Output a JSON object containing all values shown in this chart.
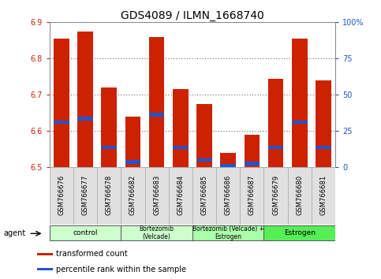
{
  "title": "GDS4089 / ILMN_1668740",
  "samples": [
    "GSM766676",
    "GSM766677",
    "GSM766678",
    "GSM766682",
    "GSM766683",
    "GSM766684",
    "GSM766685",
    "GSM766686",
    "GSM766687",
    "GSM766679",
    "GSM766680",
    "GSM766681"
  ],
  "bar_tops": [
    6.855,
    6.875,
    6.72,
    6.64,
    6.86,
    6.715,
    6.675,
    6.54,
    6.59,
    6.745,
    6.855,
    6.74
  ],
  "blue_positions": [
    6.625,
    6.635,
    6.555,
    6.515,
    6.645,
    6.555,
    6.52,
    6.505,
    6.51,
    6.555,
    6.625,
    6.555
  ],
  "bar_bottom": 6.5,
  "ymin": 6.5,
  "ymax": 6.9,
  "y_ticks": [
    6.5,
    6.6,
    6.7,
    6.8,
    6.9
  ],
  "y2_ticks": [
    0,
    25,
    50,
    75,
    100
  ],
  "bar_color": "#cc2200",
  "blue_color": "#2255cc",
  "bg_color": "#ffffff",
  "grid_color": "#000000",
  "label_color_left": "#cc2200",
  "label_color_right": "#2255cc",
  "agent_groups": [
    {
      "label": "control",
      "start": 0,
      "end": 3,
      "color": "#ccffcc"
    },
    {
      "label": "Bortezomib\n(Velcade)",
      "start": 3,
      "end": 6,
      "color": "#ccffcc"
    },
    {
      "label": "Bortezomib (Velcade) +\nEstrogen",
      "start": 6,
      "end": 9,
      "color": "#aaffaa"
    },
    {
      "label": "Estrogen",
      "start": 9,
      "end": 12,
      "color": "#55ee55"
    }
  ],
  "legend_items": [
    {
      "color": "#cc2200",
      "label": "transformed count"
    },
    {
      "color": "#2255cc",
      "label": "percentile rank within the sample"
    }
  ],
  "bar_width": 0.65,
  "tick_label_fontsize": 7,
  "title_fontsize": 10,
  "agent_label": "agent"
}
